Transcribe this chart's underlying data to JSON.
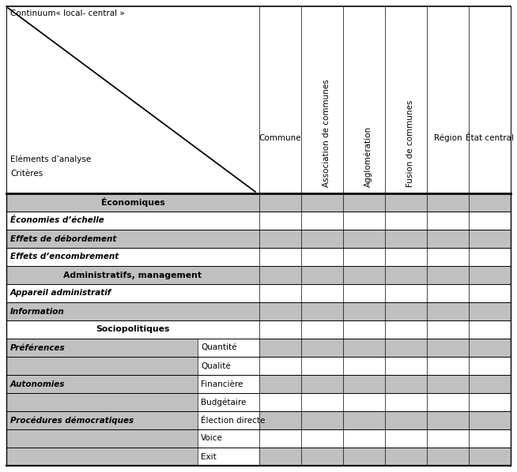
{
  "title_continuum": "Continuum« local- central »",
  "label_elements": "Eléments d’analyse",
  "label_criteria": "Critères",
  "col_headers": [
    "Commune",
    "Association de communes",
    "Agglomération",
    "Fusion de communes",
    "Région",
    "État central"
  ],
  "rows": [
    {
      "label": "Économiques",
      "type": "header",
      "subcol": null,
      "left_bg": "#c0c0c0",
      "sub_bg": "#c0c0c0",
      "data_bg": "#c0c0c0"
    },
    {
      "label": "Économies d’échelle",
      "type": "italic",
      "subcol": null,
      "left_bg": "#ffffff",
      "sub_bg": "#ffffff",
      "data_bg": "#ffffff"
    },
    {
      "label": "Effets de débordement",
      "type": "italic",
      "subcol": null,
      "left_bg": "#c0c0c0",
      "sub_bg": "#c0c0c0",
      "data_bg": "#c0c0c0"
    },
    {
      "label": "Effets d’encombrement",
      "type": "italic",
      "subcol": null,
      "left_bg": "#ffffff",
      "sub_bg": "#ffffff",
      "data_bg": "#ffffff"
    },
    {
      "label": "Administratifs, management",
      "type": "header",
      "subcol": null,
      "left_bg": "#c0c0c0",
      "sub_bg": "#c0c0c0",
      "data_bg": "#c0c0c0"
    },
    {
      "label": "Appareil administratif",
      "type": "italic",
      "subcol": null,
      "left_bg": "#ffffff",
      "sub_bg": "#ffffff",
      "data_bg": "#ffffff"
    },
    {
      "label": "Information",
      "type": "italic",
      "subcol": null,
      "left_bg": "#c0c0c0",
      "sub_bg": "#c0c0c0",
      "data_bg": "#c0c0c0"
    },
    {
      "label": "Sociopolitiques",
      "type": "header2",
      "subcol": null,
      "left_bg": "#ffffff",
      "sub_bg": "#ffffff",
      "data_bg": "#ffffff"
    },
    {
      "label": "Préférences",
      "type": "italic_left",
      "subcol": "Quantité",
      "left_bg": "#c0c0c0",
      "sub_bg": "#ffffff",
      "data_bg": "#c0c0c0"
    },
    {
      "label": "",
      "type": "sub_only",
      "subcol": "Qualité",
      "left_bg": "#c0c0c0",
      "sub_bg": "#ffffff",
      "data_bg": "#ffffff"
    },
    {
      "label": "Autonomies",
      "type": "italic_left",
      "subcol": "Financière",
      "left_bg": "#c0c0c0",
      "sub_bg": "#ffffff",
      "data_bg": "#c0c0c0"
    },
    {
      "label": "",
      "type": "sub_only",
      "subcol": "Budgétaire",
      "left_bg": "#c0c0c0",
      "sub_bg": "#ffffff",
      "data_bg": "#ffffff"
    },
    {
      "label": "Procédures démocratiques",
      "type": "italic_left",
      "subcol": "Élection directe",
      "left_bg": "#c0c0c0",
      "sub_bg": "#ffffff",
      "data_bg": "#c0c0c0"
    },
    {
      "label": "",
      "type": "sub_only",
      "subcol": "Voice",
      "left_bg": "#c0c0c0",
      "sub_bg": "#ffffff",
      "data_bg": "#ffffff"
    },
    {
      "label": "",
      "type": "sub_only",
      "subcol": "Exit",
      "left_bg": "#c0c0c0",
      "sub_bg": "#ffffff",
      "data_bg": "#c0c0c0"
    }
  ],
  "bg_color": "#ffffff"
}
